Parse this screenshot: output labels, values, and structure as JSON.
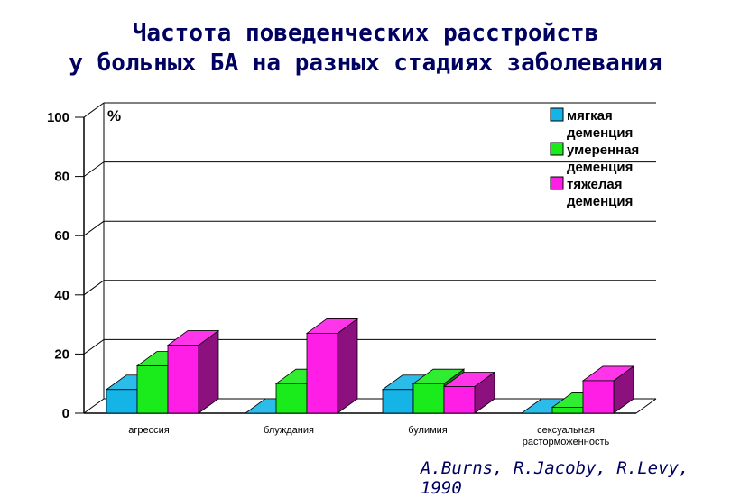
{
  "title_line1": "Частота поведенческих расстройств",
  "title_line2": "у больных БА на разных стадиях заболевания",
  "credit": "A.Burns, R.Jacoby, R.Levy, 1990",
  "chart_data": {
    "type": "bar",
    "ylabel": "%",
    "ylim": [
      0,
      100
    ],
    "yticks": [
      0,
      20,
      40,
      60,
      80,
      100
    ],
    "grid": true,
    "legend_position": "top-right",
    "categories": [
      "агрессия",
      "блуждания",
      "булимия",
      "сексуальная расторможенность"
    ],
    "series": [
      {
        "name": "мягкая деменция",
        "color": "#14b4e6",
        "values": [
          8,
          0,
          8,
          0
        ]
      },
      {
        "name": "умеренная деменция",
        "color": "#1aeb1a",
        "values": [
          16,
          10,
          10,
          2
        ]
      },
      {
        "name": "тяжелая деменция",
        "color": "#ff1ee6",
        "values": [
          23,
          27,
          9,
          11
        ]
      }
    ]
  }
}
